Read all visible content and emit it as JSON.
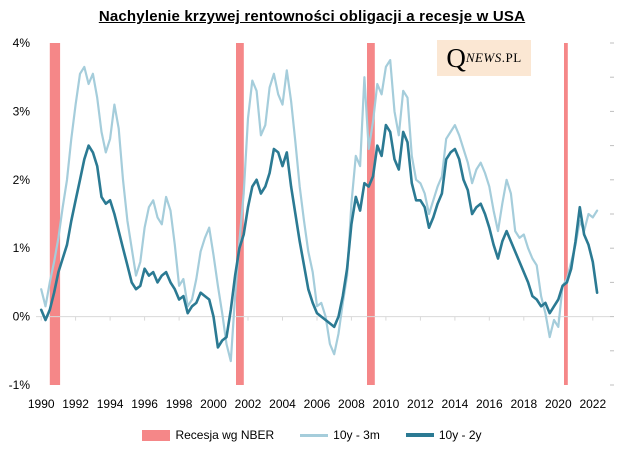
{
  "title": "Nachylenie krzywej rentowności obligacji a recesje w USA",
  "logo": {
    "q": "Q",
    "news": "NEWS",
    "pl": ".PL",
    "bg_color": "#FBE7D3"
  },
  "legend": {
    "recession_label": "Recesja wg NBER",
    "series1_label": "10y - 3m",
    "series2_label": "10y - 2y"
  },
  "colors": {
    "series_10y_3m": "#A5CDDB",
    "series_10y_2y": "#2B7A93",
    "recession_band": "#F58788",
    "zero_gridline": "#D9D9D9",
    "edge_ticks": "#BFBFBF",
    "text": "#000000"
  },
  "chart_data": {
    "type": "line",
    "title": "Nachylenie krzywej rentowności obligacji a recesje w USA",
    "xlabel": "",
    "ylabel": "",
    "xlim": [
      1989.7,
      2023.0
    ],
    "ylim": [
      -1,
      4
    ],
    "grid": "horizontal zero line only",
    "legend_position": "bottom center",
    "y_ticks": [
      {
        "label": "4%",
        "value": 4
      },
      {
        "label": "3%",
        "value": 3
      },
      {
        "label": "2%",
        "value": 2
      },
      {
        "label": "1%",
        "value": 1
      },
      {
        "label": "0%",
        "value": 0
      },
      {
        "label": "-1%",
        "value": -1
      }
    ],
    "x_ticks": [
      {
        "label": "1990",
        "value": 1990
      },
      {
        "label": "1992",
        "value": 1992
      },
      {
        "label": "1994",
        "value": 1994
      },
      {
        "label": "1996",
        "value": 1996
      },
      {
        "label": "1998",
        "value": 1998
      },
      {
        "label": "2000",
        "value": 2000
      },
      {
        "label": "2002",
        "value": 2002
      },
      {
        "label": "2004",
        "value": 2004
      },
      {
        "label": "2006",
        "value": 2006
      },
      {
        "label": "2008",
        "value": 2008
      },
      {
        "label": "2010",
        "value": 2010
      },
      {
        "label": "2012",
        "value": 2012
      },
      {
        "label": "2014",
        "value": 2014
      },
      {
        "label": "2016",
        "value": 2016
      },
      {
        "label": "2018",
        "value": 2018
      },
      {
        "label": "2020",
        "value": 2020
      },
      {
        "label": "2022",
        "value": 2022
      }
    ],
    "x_start": 1990.0,
    "x_step": 0.25,
    "recessions": {
      "label": "Recesja wg NBER",
      "color": "#F58788",
      "bands": [
        [
          1990.5,
          1991.1
        ],
        [
          2001.3,
          2001.75
        ],
        [
          2008.9,
          2009.35
        ],
        [
          2020.33,
          2020.55
        ]
      ]
    },
    "series": [
      {
        "name": "10y - 3m",
        "color": "#A5CDDB",
        "stroke_width": 2.2,
        "values": [
          0.4,
          0.15,
          0.5,
          0.8,
          1.15,
          1.6,
          2.0,
          2.6,
          3.1,
          3.55,
          3.65,
          3.4,
          3.55,
          3.2,
          2.7,
          2.4,
          2.6,
          3.1,
          2.75,
          2.0,
          1.4,
          1.0,
          0.6,
          0.8,
          1.3,
          1.6,
          1.7,
          1.45,
          1.35,
          1.75,
          1.55,
          1.05,
          0.45,
          0.55,
          0.15,
          0.25,
          0.55,
          0.95,
          1.15,
          1.3,
          0.9,
          0.45,
          0.05,
          -0.4,
          -0.65,
          0.3,
          1.1,
          1.8,
          2.9,
          3.45,
          3.3,
          2.65,
          2.8,
          3.35,
          3.55,
          3.25,
          3.1,
          3.6,
          3.15,
          2.55,
          1.9,
          1.4,
          0.95,
          0.65,
          0.15,
          0.2,
          0.0,
          -0.4,
          -0.55,
          -0.25,
          0.2,
          0.6,
          1.65,
          2.35,
          2.2,
          3.5,
          2.45,
          2.85,
          3.4,
          3.25,
          3.65,
          3.75,
          3.0,
          2.65,
          3.3,
          3.2,
          2.35,
          2.0,
          1.95,
          1.8,
          1.5,
          1.7,
          1.9,
          2.05,
          2.6,
          2.7,
          2.8,
          2.65,
          2.45,
          2.25,
          1.95,
          2.15,
          2.25,
          2.1,
          1.9,
          1.55,
          1.25,
          1.65,
          2.0,
          1.8,
          1.25,
          1.15,
          1.2,
          1.0,
          0.85,
          0.75,
          0.3,
          0.05,
          -0.3,
          -0.05,
          -0.15,
          0.45,
          0.55,
          0.8,
          1.05,
          1.4,
          1.25,
          1.5,
          1.45,
          1.55
        ]
      },
      {
        "name": "10y - 2y",
        "color": "#2B7A93",
        "stroke_width": 2.6,
        "values": [
          0.1,
          -0.05,
          0.1,
          0.35,
          0.65,
          0.85,
          1.05,
          1.4,
          1.7,
          2.0,
          2.3,
          2.5,
          2.4,
          2.2,
          1.75,
          1.65,
          1.7,
          1.5,
          1.25,
          1.0,
          0.75,
          0.5,
          0.4,
          0.45,
          0.7,
          0.6,
          0.65,
          0.5,
          0.6,
          0.65,
          0.5,
          0.4,
          0.25,
          0.3,
          0.05,
          0.15,
          0.2,
          0.35,
          0.3,
          0.25,
          0.0,
          -0.45,
          -0.35,
          -0.3,
          0.1,
          0.6,
          1.0,
          1.2,
          1.6,
          1.9,
          2.0,
          1.8,
          1.9,
          2.1,
          2.45,
          2.4,
          2.2,
          2.4,
          1.9,
          1.5,
          1.1,
          0.75,
          0.4,
          0.2,
          0.05,
          0.0,
          -0.05,
          -0.1,
          -0.15,
          0.0,
          0.3,
          0.7,
          1.35,
          1.75,
          1.55,
          1.95,
          1.9,
          2.05,
          2.5,
          2.35,
          2.8,
          2.7,
          2.3,
          2.15,
          2.7,
          2.55,
          1.95,
          1.7,
          1.7,
          1.6,
          1.3,
          1.45,
          1.65,
          1.8,
          2.3,
          2.4,
          2.45,
          2.3,
          2.0,
          1.85,
          1.5,
          1.6,
          1.65,
          1.5,
          1.3,
          1.05,
          0.85,
          1.1,
          1.25,
          1.1,
          0.95,
          0.8,
          0.65,
          0.5,
          0.3,
          0.25,
          0.15,
          0.2,
          0.05,
          0.15,
          0.25,
          0.45,
          0.5,
          0.7,
          1.1,
          1.6,
          1.2,
          1.05,
          0.8,
          0.35
        ]
      }
    ]
  }
}
